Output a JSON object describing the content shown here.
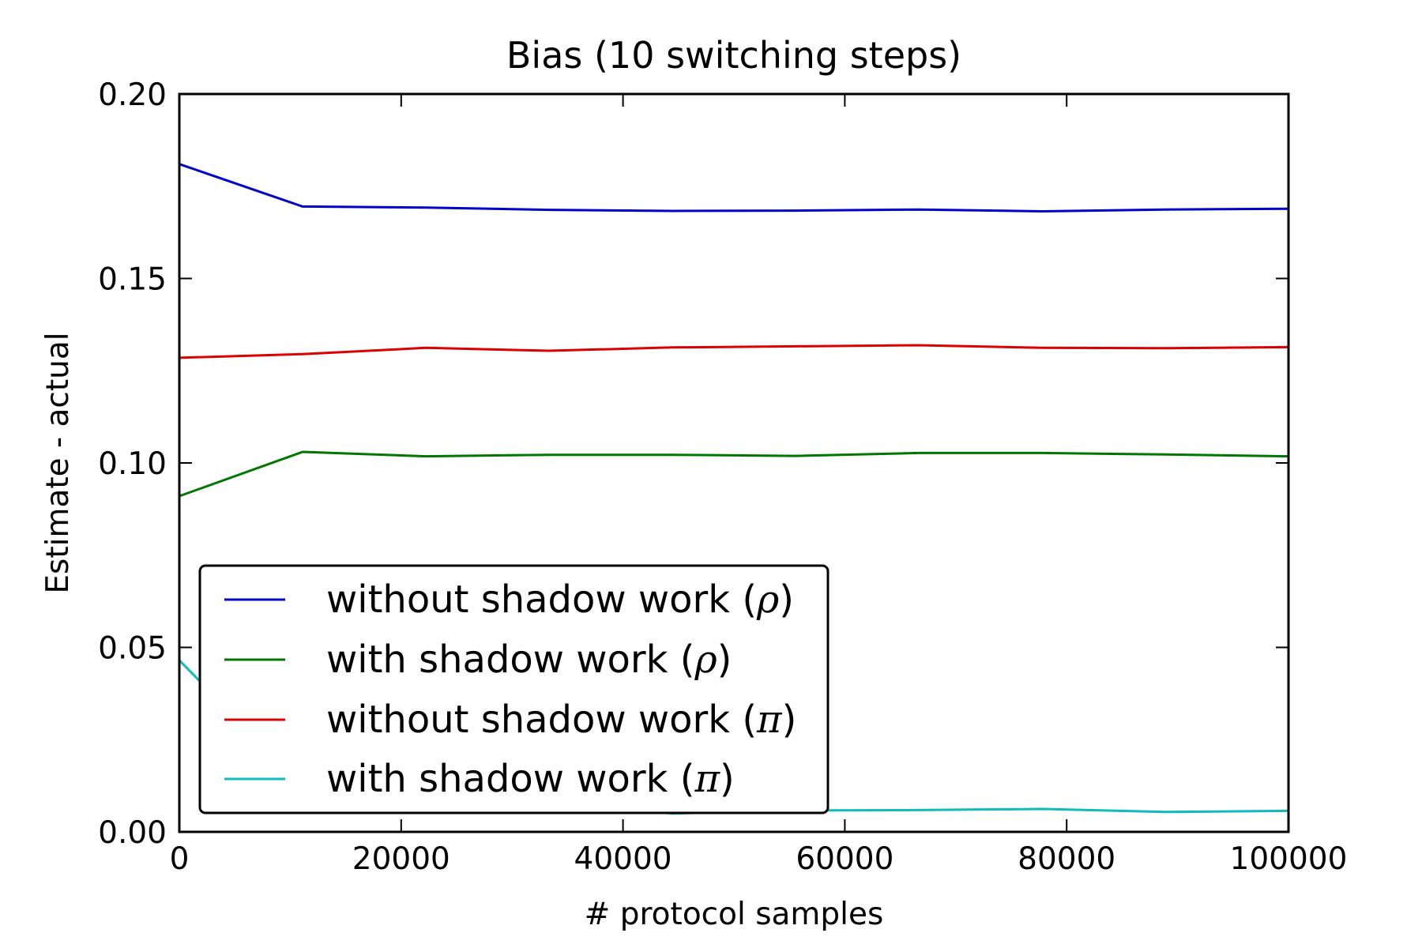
{
  "chart_data": {
    "type": "line",
    "title": "Bias (10 switching steps)",
    "xlabel": "# protocol samples",
    "ylabel": "Estimate - actual",
    "xlim": [
      0,
      100000
    ],
    "ylim": [
      0,
      0.2
    ],
    "xticks": [
      0,
      20000,
      40000,
      60000,
      80000,
      100000
    ],
    "xtick_labels": [
      "0",
      "20000",
      "40000",
      "60000",
      "80000",
      "100000"
    ],
    "yticks": [
      0,
      0.05,
      0.1,
      0.15,
      0.2
    ],
    "ytick_labels": [
      "0.00",
      "0.05",
      "0.10",
      "0.15",
      "0.20"
    ],
    "grid": false,
    "legend_position": "lower-left",
    "x": [
      0,
      11111,
      22222,
      33333,
      44444,
      55556,
      66667,
      77778,
      88889,
      100000
    ],
    "series": [
      {
        "name": "without shadow work (ρ)",
        "name_prefix": "without shadow work (",
        "name_symbol": "ρ",
        "name_suffix": ")",
        "color": "#0000cc",
        "values": [
          0.181,
          0.1695,
          0.1692,
          0.1686,
          0.1683,
          0.1684,
          0.1687,
          0.1682,
          0.1687,
          0.1689
        ]
      },
      {
        "name": "with shadow work (ρ)",
        "name_prefix": "with shadow work (",
        "name_symbol": "ρ",
        "name_suffix": ")",
        "color": "#007700",
        "values": [
          0.091,
          0.103,
          0.1018,
          0.1022,
          0.1022,
          0.1019,
          0.1027,
          0.1027,
          0.1023,
          0.1018
        ]
      },
      {
        "name": "without shadow work (π)",
        "name_prefix": "without shadow work (",
        "name_symbol": "π",
        "name_suffix": ")",
        "color": "#dd0000",
        "values": [
          0.1285,
          0.1295,
          0.1312,
          0.1304,
          0.1313,
          0.1316,
          0.1319,
          0.1312,
          0.1311,
          0.1314
        ]
      },
      {
        "name": "with shadow work (π)",
        "name_prefix": "with shadow work (",
        "name_symbol": "π",
        "name_suffix": ")",
        "color": "#11bbbb",
        "values": [
          0.0465,
          0.0125,
          0.011,
          0.008,
          0.005,
          0.0058,
          0.0059,
          0.0062,
          0.0054,
          0.0057
        ]
      }
    ]
  }
}
